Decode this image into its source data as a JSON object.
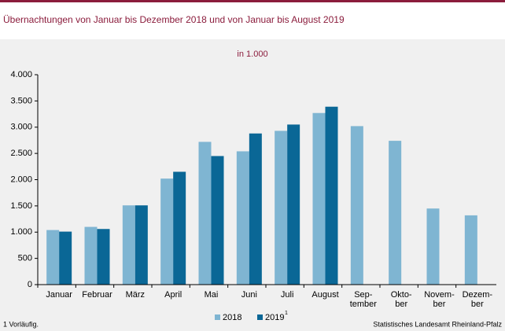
{
  "chart_data": {
    "type": "bar",
    "title": "Übernachtungen  von  Januar bis Dezember  2018  und  von  Januar  bis  August  2019",
    "subtitle": "in 1.000",
    "categories": [
      "Januar",
      "Februar",
      "März",
      "April",
      "Mai",
      "Juni",
      "Juli",
      "August",
      "Sep-\ntember",
      "Okto-\nber",
      "Novem-\nber",
      "Dezem-\nber"
    ],
    "series": [
      {
        "name": "2018",
        "color": "#7fb5d2",
        "values": [
          1040,
          1100,
          1510,
          2020,
          2720,
          2540,
          2930,
          3270,
          3020,
          2740,
          1450,
          1320
        ]
      },
      {
        "name": "2019",
        "color": "#0a6796",
        "values": [
          1010,
          1060,
          1510,
          2150,
          2450,
          2880,
          3050,
          3390,
          null,
          null,
          null,
          null
        ]
      }
    ],
    "footnote_ref": "1",
    "ylim": [
      0,
      4000
    ],
    "yticks": [
      0,
      500,
      {
        "value": 1000,
        "label": "1.000"
      },
      {
        "value": 1500,
        "label": "1.500"
      },
      {
        "value": 2000,
        "label": "2.000"
      },
      {
        "value": 2500,
        "label": "2.500"
      },
      {
        "value": 3000,
        "label": "3.000"
      },
      {
        "value": 3500,
        "label": "3.500"
      },
      {
        "value": 4000,
        "label": "4.000"
      }
    ],
    "grid": false,
    "footnote": "1 Vorläufig.",
    "source": "Statistisches Landesamt Rheinland-Pfalz"
  }
}
